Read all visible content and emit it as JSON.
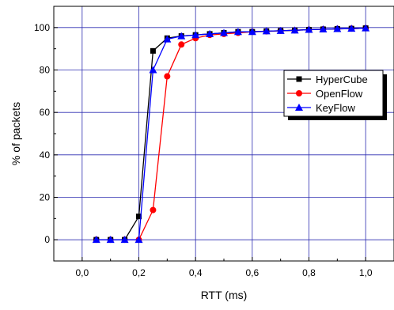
{
  "chart_data": {
    "type": "line",
    "title": "",
    "xlabel": "RTT (ms)",
    "ylabel": "% of packets",
    "xlim": [
      -0.1,
      1.1
    ],
    "ylim": [
      -10,
      110
    ],
    "x_ticks": [
      0.0,
      0.2,
      0.4,
      0.6,
      0.8,
      1.0
    ],
    "x_tick_labels": [
      "0,0",
      "0,2",
      "0,4",
      "0,6",
      "0,8",
      "1,0"
    ],
    "y_ticks": [
      0,
      20,
      40,
      60,
      80,
      100
    ],
    "y_tick_labels": [
      "0",
      "20",
      "40",
      "60",
      "80",
      "100"
    ],
    "grid": true,
    "legend_position": "right",
    "x": [
      0.05,
      0.1,
      0.15,
      0.2,
      0.25,
      0.3,
      0.35,
      0.4,
      0.45,
      0.5,
      0.55,
      0.6,
      0.65,
      0.7,
      0.75,
      0.8,
      0.85,
      0.9,
      0.95,
      1.0
    ],
    "series": [
      {
        "name": "HyperCube",
        "color": "#000000",
        "marker": "square",
        "values": [
          0,
          0,
          0,
          11,
          89,
          95,
          96,
          96.5,
          97,
          97.5,
          98,
          98,
          98.3,
          98.5,
          98.7,
          99,
          99.2,
          99.4,
          99.5,
          99.7
        ]
      },
      {
        "name": "OpenFlow",
        "color": "#ff0000",
        "marker": "circle",
        "values": [
          0,
          0,
          0,
          0,
          14,
          77,
          92,
          95,
          96.5,
          97,
          97.5,
          98,
          98.2,
          98.5,
          98.7,
          99,
          99.2,
          99.4,
          99.5,
          99.7
        ]
      },
      {
        "name": "KeyFlow",
        "color": "#0000ff",
        "marker": "triangle",
        "values": [
          0,
          0,
          0,
          0,
          80,
          94.5,
          96,
          96.5,
          97,
          97.5,
          98,
          98,
          98.3,
          98.5,
          98.7,
          99,
          99.2,
          99.4,
          99.5,
          99.7
        ]
      }
    ]
  }
}
